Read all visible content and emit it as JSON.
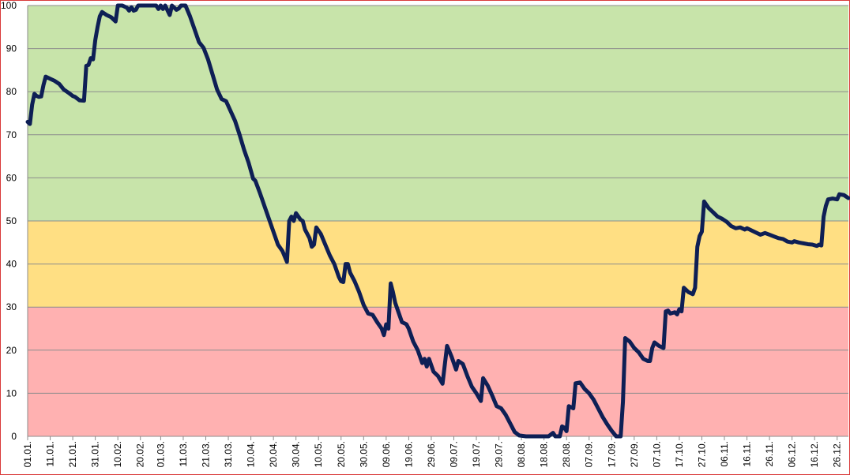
{
  "chart_data": {
    "type": "line",
    "title": "",
    "xlabel": "",
    "ylabel": "",
    "ylim": [
      0,
      100
    ],
    "xlim": [
      "01.01.",
      "31.12."
    ],
    "yticks": [
      0,
      10,
      20,
      30,
      40,
      50,
      60,
      70,
      80,
      90,
      100
    ],
    "xticks": [
      "01.01.",
      "11.01.",
      "21.01.",
      "31.01.",
      "10.02.",
      "20.02.",
      "01.03.",
      "11.03.",
      "21.03.",
      "31.03.",
      "10.04.",
      "20.04.",
      "30.04.",
      "10.05.",
      "20.05.",
      "30.05.",
      "09.06.",
      "19.06.",
      "29.06.",
      "09.07.",
      "19.07.",
      "29.07.",
      "08.08.",
      "18.08.",
      "28.08.",
      "07.09.",
      "17.09.",
      "27.09.",
      "07.10.",
      "17.10.",
      "27.10.",
      "06.11.",
      "16.11.",
      "26.11.",
      "06.12.",
      "16.12.",
      "26.12."
    ],
    "grid": true,
    "legend": "none",
    "bands": [
      {
        "from": 0,
        "to": 30,
        "color": "#ffb1b1"
      },
      {
        "from": 30,
        "to": 50,
        "color": "#ffdf83"
      },
      {
        "from": 50,
        "to": 100,
        "color": "#c8e4aa"
      }
    ],
    "series": [
      {
        "color": "#0e1f55",
        "points": [
          {
            "x": "01.01.",
            "y": 73
          },
          {
            "x": "02.01.",
            "y": 72.5
          },
          {
            "x": "03.01.",
            "y": 77
          },
          {
            "x": "04.01.",
            "y": 79.5
          },
          {
            "x": "05.01.",
            "y": 79
          },
          {
            "x": "06.01.",
            "y": 78.8
          },
          {
            "x": "07.01.",
            "y": 78.9
          },
          {
            "x": "08.01.",
            "y": 81.5
          },
          {
            "x": "09.01.",
            "y": 83.5
          },
          {
            "x": "11.01.",
            "y": 83
          },
          {
            "x": "13.01.",
            "y": 82.5
          },
          {
            "x": "15.01.",
            "y": 81.8
          },
          {
            "x": "17.01.",
            "y": 80.5
          },
          {
            "x": "19.01.",
            "y": 79.8
          },
          {
            "x": "21.01.",
            "y": 79
          },
          {
            "x": "22.01.",
            "y": 78.8
          },
          {
            "x": "24.01.",
            "y": 78
          },
          {
            "x": "26.01.",
            "y": 77.9
          },
          {
            "x": "27.01.",
            "y": 86
          },
          {
            "x": "28.01.",
            "y": 86.2
          },
          {
            "x": "29.01.",
            "y": 87.8
          },
          {
            "x": "30.01.",
            "y": 87.5
          },
          {
            "x": "31.01.",
            "y": 92
          },
          {
            "x": "01.02.",
            "y": 95
          },
          {
            "x": "02.02.",
            "y": 97.5
          },
          {
            "x": "03.02.",
            "y": 98.5
          },
          {
            "x": "05.02.",
            "y": 97.8
          },
          {
            "x": "07.02.",
            "y": 97.3
          },
          {
            "x": "09.02.",
            "y": 96.3
          },
          {
            "x": "10.02.",
            "y": 100
          },
          {
            "x": "12.02.",
            "y": 100
          },
          {
            "x": "14.02.",
            "y": 99.5
          },
          {
            "x": "15.02.",
            "y": 98.8
          },
          {
            "x": "16.02.",
            "y": 99.6
          },
          {
            "x": "17.02.",
            "y": 98.8
          },
          {
            "x": "18.02.",
            "y": 99
          },
          {
            "x": "19.02.",
            "y": 100
          },
          {
            "x": "23.02.",
            "y": 100
          },
          {
            "x": "27.02.",
            "y": 100
          },
          {
            "x": "28.02.",
            "y": 99.2
          },
          {
            "x": "01.03.",
            "y": 100
          },
          {
            "x": "02.03.",
            "y": 99.2
          },
          {
            "x": "03.03.",
            "y": 100
          },
          {
            "x": "05.03.",
            "y": 97.8
          },
          {
            "x": "06.03.",
            "y": 100
          },
          {
            "x": "08.03.",
            "y": 99
          },
          {
            "x": "09.03.",
            "y": 99.3
          },
          {
            "x": "10.03.",
            "y": 100
          },
          {
            "x": "12.03.",
            "y": 100
          },
          {
            "x": "14.03.",
            "y": 97.5
          },
          {
            "x": "16.03.",
            "y": 94.5
          },
          {
            "x": "18.03.",
            "y": 91.5
          },
          {
            "x": "20.03.",
            "y": 90.2
          },
          {
            "x": "22.03.",
            "y": 87.5
          },
          {
            "x": "24.03.",
            "y": 84
          },
          {
            "x": "26.03.",
            "y": 80.5
          },
          {
            "x": "28.03.",
            "y": 78.3
          },
          {
            "x": "30.03.",
            "y": 77.8
          },
          {
            "x": "01.04.",
            "y": 75.5
          },
          {
            "x": "03.04.",
            "y": 73.2
          },
          {
            "x": "05.04.",
            "y": 70
          },
          {
            "x": "07.04.",
            "y": 66.5
          },
          {
            "x": "09.04.",
            "y": 63.5
          },
          {
            "x": "11.04.",
            "y": 59.8
          },
          {
            "x": "12.04.",
            "y": 59.3
          },
          {
            "x": "14.04.",
            "y": 56.5
          },
          {
            "x": "16.04.",
            "y": 53.5
          },
          {
            "x": "18.04.",
            "y": 50.5
          },
          {
            "x": "20.04.",
            "y": 47.5
          },
          {
            "x": "22.04.",
            "y": 44.5
          },
          {
            "x": "24.04.",
            "y": 43
          },
          {
            "x": "26.04.",
            "y": 40.5
          },
          {
            "x": "27.04.",
            "y": 50
          },
          {
            "x": "28.04.",
            "y": 51
          },
          {
            "x": "29.04.",
            "y": 50
          },
          {
            "x": "30.04.",
            "y": 51.8
          },
          {
            "x": "02.05.",
            "y": 50.3
          },
          {
            "x": "03.05.",
            "y": 50
          },
          {
            "x": "04.05.",
            "y": 48
          },
          {
            "x": "06.05.",
            "y": 46
          },
          {
            "x": "07.05.",
            "y": 44
          },
          {
            "x": "08.05.",
            "y": 44.5
          },
          {
            "x": "09.05.",
            "y": 48.5
          },
          {
            "x": "11.05.",
            "y": 47
          },
          {
            "x": "13.05.",
            "y": 44.5
          },
          {
            "x": "15.05.",
            "y": 42
          },
          {
            "x": "17.05.",
            "y": 40
          },
          {
            "x": "19.05.",
            "y": 37
          },
          {
            "x": "20.05.",
            "y": 36
          },
          {
            "x": "21.05.",
            "y": 35.8
          },
          {
            "x": "22.05.",
            "y": 40
          },
          {
            "x": "23.05.",
            "y": 40
          },
          {
            "x": "24.05.",
            "y": 38
          },
          {
            "x": "26.05.",
            "y": 36
          },
          {
            "x": "28.05.",
            "y": 33.5
          },
          {
            "x": "30.05.",
            "y": 30.5
          },
          {
            "x": "01.06.",
            "y": 28.5
          },
          {
            "x": "03.06.",
            "y": 28.2
          },
          {
            "x": "05.06.",
            "y": 26.5
          },
          {
            "x": "07.06.",
            "y": 25
          },
          {
            "x": "08.06.",
            "y": 23.5
          },
          {
            "x": "09.06.",
            "y": 26
          },
          {
            "x": "10.06.",
            "y": 25
          },
          {
            "x": "11.06.",
            "y": 35.5
          },
          {
            "x": "12.06.",
            "y": 33.5
          },
          {
            "x": "13.06.",
            "y": 31
          },
          {
            "x": "15.06.",
            "y": 28
          },
          {
            "x": "16.06.",
            "y": 26.5
          },
          {
            "x": "18.06.",
            "y": 26
          },
          {
            "x": "19.06.",
            "y": 25
          },
          {
            "x": "21.06.",
            "y": 22
          },
          {
            "x": "23.06.",
            "y": 20
          },
          {
            "x": "25.06.",
            "y": 17
          },
          {
            "x": "26.06.",
            "y": 18
          },
          {
            "x": "27.06.",
            "y": 16.2
          },
          {
            "x": "28.06.",
            "y": 18
          },
          {
            "x": "29.06.",
            "y": 16.5
          },
          {
            "x": "30.06.",
            "y": 15
          },
          {
            "x": "02.07.",
            "y": 14
          },
          {
            "x": "04.07.",
            "y": 12.2
          },
          {
            "x": "06.07.",
            "y": 21
          },
          {
            "x": "08.07.",
            "y": 18.5
          },
          {
            "x": "10.07.",
            "y": 15.5
          },
          {
            "x": "11.07.",
            "y": 17.5
          },
          {
            "x": "13.07.",
            "y": 16.8
          },
          {
            "x": "15.07.",
            "y": 14
          },
          {
            "x": "17.07.",
            "y": 11.5
          },
          {
            "x": "19.07.",
            "y": 10
          },
          {
            "x": "21.07.",
            "y": 8.2
          },
          {
            "x": "22.07.",
            "y": 13.5
          },
          {
            "x": "24.07.",
            "y": 11.8
          },
          {
            "x": "26.07.",
            "y": 9.5
          },
          {
            "x": "28.07.",
            "y": 7
          },
          {
            "x": "30.07.",
            "y": 6.5
          },
          {
            "x": "01.08.",
            "y": 5
          },
          {
            "x": "03.08.",
            "y": 3
          },
          {
            "x": "05.08.",
            "y": 1
          },
          {
            "x": "07.08.",
            "y": 0.2
          },
          {
            "x": "10.08.",
            "y": 0
          },
          {
            "x": "20.08.",
            "y": 0
          },
          {
            "x": "22.08.",
            "y": 0.8
          },
          {
            "x": "23.08.",
            "y": 0
          },
          {
            "x": "25.08.",
            "y": 0
          },
          {
            "x": "26.08.",
            "y": 2.3
          },
          {
            "x": "27.08.",
            "y": 2
          },
          {
            "x": "28.08.",
            "y": 1.2
          },
          {
            "x": "29.08.",
            "y": 7
          },
          {
            "x": "31.08.",
            "y": 6.5
          },
          {
            "x": "01.09.",
            "y": 12.3
          },
          {
            "x": "03.09.",
            "y": 12.5
          },
          {
            "x": "05.09.",
            "y": 11
          },
          {
            "x": "07.09.",
            "y": 10
          },
          {
            "x": "09.09.",
            "y": 8.5
          },
          {
            "x": "11.09.",
            "y": 6.5
          },
          {
            "x": "13.09.",
            "y": 4.5
          },
          {
            "x": "15.09.",
            "y": 2.8
          },
          {
            "x": "17.09.",
            "y": 1.3
          },
          {
            "x": "19.09.",
            "y": 0
          },
          {
            "x": "21.09.",
            "y": 0
          },
          {
            "x": "22.09.",
            "y": 8
          },
          {
            "x": "23.09.",
            "y": 22.8
          },
          {
            "x": "25.09.",
            "y": 22
          },
          {
            "x": "27.09.",
            "y": 20.5
          },
          {
            "x": "29.09.",
            "y": 19.5
          },
          {
            "x": "01.10.",
            "y": 18
          },
          {
            "x": "03.10.",
            "y": 17.5
          },
          {
            "x": "04.10.",
            "y": 17.5
          },
          {
            "x": "05.10.",
            "y": 20.5
          },
          {
            "x": "06.10.",
            "y": 21.8
          },
          {
            "x": "08.10.",
            "y": 21
          },
          {
            "x": "10.10.",
            "y": 20.5
          },
          {
            "x": "11.10.",
            "y": 29
          },
          {
            "x": "12.10.",
            "y": 29.2
          },
          {
            "x": "13.10.",
            "y": 28.5
          },
          {
            "x": "15.10.",
            "y": 28.8
          },
          {
            "x": "16.10.",
            "y": 28.3
          },
          {
            "x": "17.10.",
            "y": 29.5
          },
          {
            "x": "18.10.",
            "y": 29
          },
          {
            "x": "19.10.",
            "y": 34.5
          },
          {
            "x": "21.10.",
            "y": 33.5
          },
          {
            "x": "23.10.",
            "y": 33
          },
          {
            "x": "24.10.",
            "y": 34.5
          },
          {
            "x": "25.10.",
            "y": 44
          },
          {
            "x": "26.10.",
            "y": 46.5
          },
          {
            "x": "27.10.",
            "y": 47.5
          },
          {
            "x": "28.10.",
            "y": 54.5
          },
          {
            "x": "30.10.",
            "y": 53
          },
          {
            "x": "01.11.",
            "y": 52
          },
          {
            "x": "03.11.",
            "y": 51
          },
          {
            "x": "05.11.",
            "y": 50.5
          },
          {
            "x": "07.11.",
            "y": 49.8
          },
          {
            "x": "09.11.",
            "y": 48.8
          },
          {
            "x": "11.11.",
            "y": 48.3
          },
          {
            "x": "13.11.",
            "y": 48.5
          },
          {
            "x": "15.11.",
            "y": 48
          },
          {
            "x": "16.11.",
            "y": 48.3
          },
          {
            "x": "18.11.",
            "y": 47.8
          },
          {
            "x": "20.11.",
            "y": 47.3
          },
          {
            "x": "22.11.",
            "y": 46.8
          },
          {
            "x": "24.11.",
            "y": 47.2
          },
          {
            "x": "26.11.",
            "y": 46.8
          },
          {
            "x": "28.11.",
            "y": 46.4
          },
          {
            "x": "30.11.",
            "y": 46
          },
          {
            "x": "02.12.",
            "y": 45.8
          },
          {
            "x": "04.12.",
            "y": 45.2
          },
          {
            "x": "06.12.",
            "y": 45
          },
          {
            "x": "07.12.",
            "y": 45.3
          },
          {
            "x": "09.12.",
            "y": 45
          },
          {
            "x": "11.12.",
            "y": 44.8
          },
          {
            "x": "13.12.",
            "y": 44.6
          },
          {
            "x": "15.12.",
            "y": 44.5
          },
          {
            "x": "17.12.",
            "y": 44.2
          },
          {
            "x": "18.12.",
            "y": 44.5
          },
          {
            "x": "19.12.",
            "y": 44.3
          },
          {
            "x": "20.12.",
            "y": 51
          },
          {
            "x": "21.12.",
            "y": 53.5
          },
          {
            "x": "22.12.",
            "y": 55
          },
          {
            "x": "24.12.",
            "y": 55.2
          },
          {
            "x": "26.12.",
            "y": 55
          },
          {
            "x": "27.12.",
            "y": 56.2
          },
          {
            "x": "29.12.",
            "y": 56
          },
          {
            "x": "31.12.",
            "y": 55.3
          }
        ]
      }
    ]
  }
}
